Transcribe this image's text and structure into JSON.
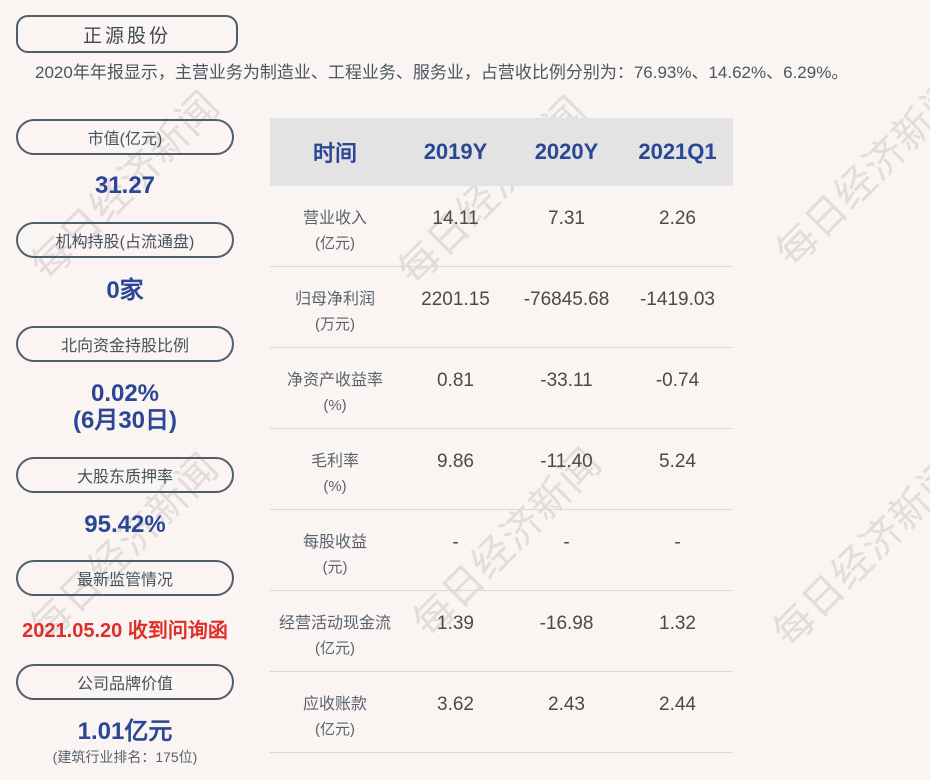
{
  "watermark": {
    "text": "每日经济新闻"
  },
  "header": {
    "company_name": "正源股份",
    "description": "2020年年报显示，主营业务为制造业、工程业务、服务业，占营收比例分别为：76.93%、14.62%、6.29%。"
  },
  "sidebar": {
    "items": [
      {
        "label": "市值(亿元)",
        "value": "31.27"
      },
      {
        "label": "机构持股(占流通盘)",
        "value": "0家"
      },
      {
        "label": "北向资金持股比例",
        "value": "0.02%",
        "note": "(6月30日)"
      },
      {
        "label": "大股东质押率",
        "value": "95.42%"
      },
      {
        "label": "最新监管情况",
        "value": "2021.05.20 收到问询函"
      },
      {
        "label": "公司品牌价值",
        "value": "1.01亿元",
        "note": "(建筑行业排名：175位)"
      }
    ]
  },
  "chart_data": {
    "type": "table",
    "title": "正源股份财务数据",
    "columns": [
      "时间",
      "2019Y",
      "2020Y",
      "2021Q1"
    ],
    "rows": [
      {
        "metric": "营业收入",
        "unit": "(亿元)",
        "v1": "14.11",
        "v2": "7.31",
        "v3": "2.26"
      },
      {
        "metric": "归母净利润",
        "unit": "(万元)",
        "v1": "2201.15",
        "v2": "-76845.68",
        "v3": "-1419.03"
      },
      {
        "metric": "净资产收益率",
        "unit": "(%)",
        "v1": "0.81",
        "v2": "-33.11",
        "v3": "-0.74"
      },
      {
        "metric": "毛利率",
        "unit": "(%)",
        "v1": "9.86",
        "v2": "-11.40",
        "v3": "5.24"
      },
      {
        "metric": "每股收益",
        "unit": "(元)",
        "v1": "-",
        "v2": "-",
        "v3": "-"
      },
      {
        "metric": "经营活动现金流",
        "unit": "(亿元)",
        "v1": "1.39",
        "v2": "-16.98",
        "v3": "1.32"
      },
      {
        "metric": "应收账款",
        "unit": "(亿元)",
        "v1": "3.62",
        "v2": "2.43",
        "v3": "2.44"
      }
    ]
  },
  "colors": {
    "page_bg": "#faf4f2",
    "accent_blue": "#2b4697",
    "alert_red": "#e02d28",
    "slate_border": "#4f5e6b",
    "table_header_bg": "#e3e3e3",
    "watermark_gray": "#e2dcda"
  }
}
